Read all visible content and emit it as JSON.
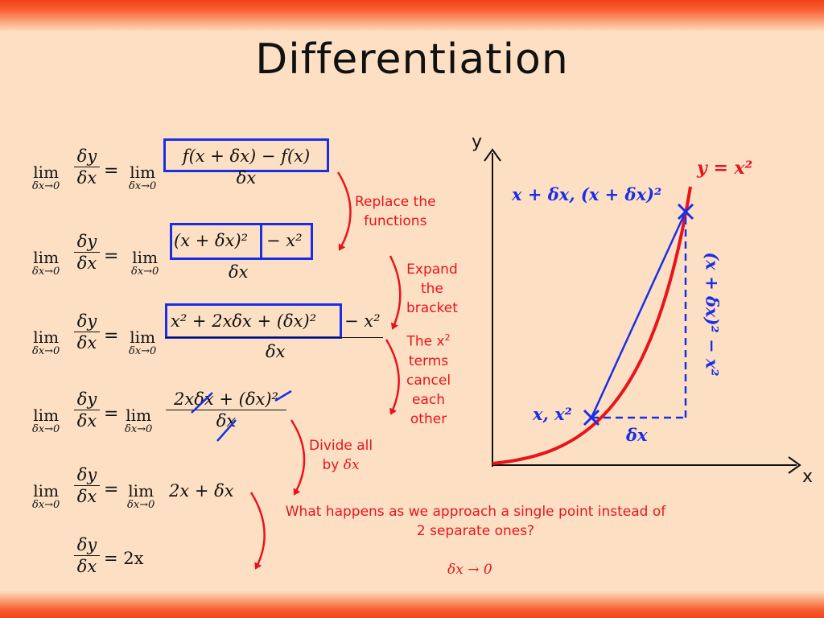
{
  "title": "Differentiation",
  "derivation": {
    "lhs_num": "δy",
    "lhs_den": "δx",
    "lim_word": "lim",
    "lim_sub": "δx→0",
    "equals": "=",
    "step1": {
      "num": "f(x + δx) − f(x)",
      "den": "δx"
    },
    "step2": {
      "num_boxed": "(x + δx)²",
      "num_rest": "− x²",
      "den": "δx"
    },
    "step3": {
      "num_boxed": "x² + 2xδx + (δx)²",
      "num_rest": "− x²",
      "den": "δx"
    },
    "step4": {
      "num": "2xδx + (δx)²",
      "den": "δx"
    },
    "step5": {
      "expr": "2x + δx"
    },
    "result": {
      "rhs": "= 2x"
    }
  },
  "annotations": {
    "replace": [
      "Replace the",
      "functions"
    ],
    "expand": [
      "Expand",
      "the",
      "bracket"
    ],
    "cancel": [
      "The x",
      "2",
      "terms",
      "cancel",
      "each",
      "other"
    ],
    "divide": [
      "Divide all",
      "by ",
      "δx"
    ],
    "approach": [
      "What happens as we approach a  single point instead of",
      "2 separate ones?"
    ],
    "limit": "δx → 0"
  },
  "graph": {
    "y_axis_label": "y",
    "x_axis_label": "x",
    "curve_label": "y = x²",
    "upper_point_label": "x + δx, (x + δx)²",
    "lower_point_label": "x, x²",
    "dx_label": "δx",
    "dy_label": "(x + δx)² − x²"
  },
  "colors": {
    "background": "#fde0c4",
    "band": "#f3401c",
    "box": "#1a2ee6",
    "annotation": "#e8141c",
    "curve": "#e8141c",
    "secant": "#1a2ee6"
  }
}
